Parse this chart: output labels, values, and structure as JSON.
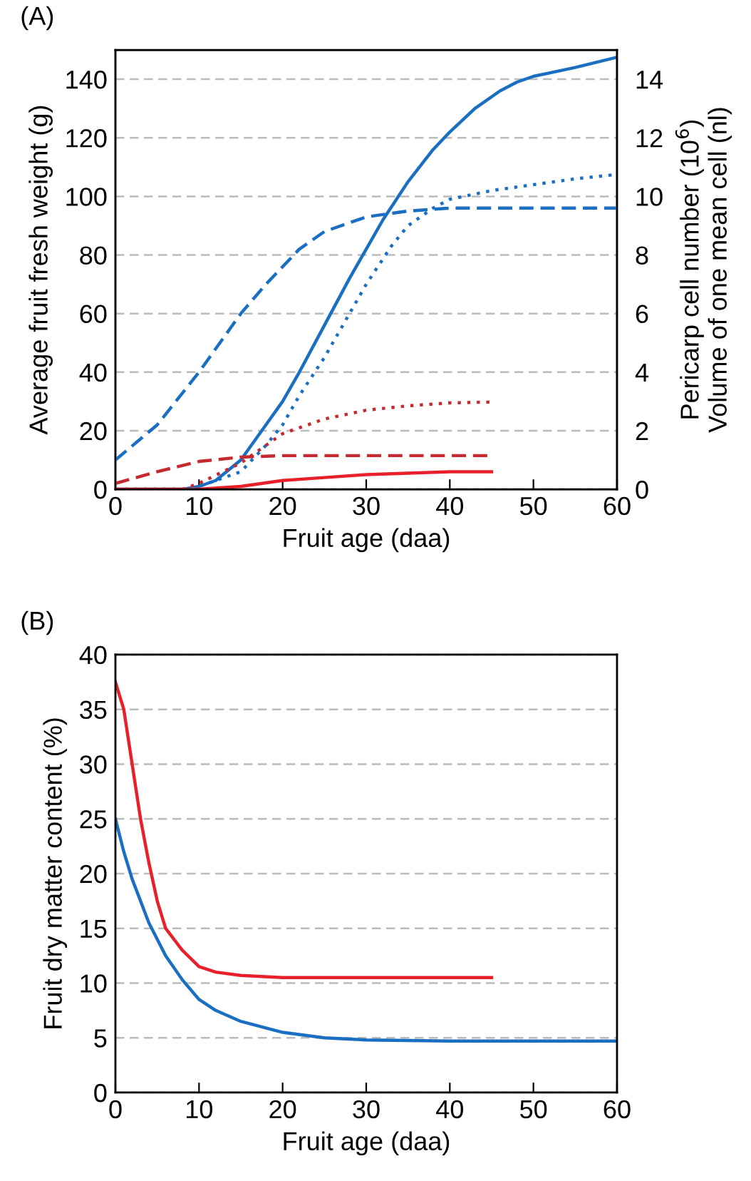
{
  "chart_data": [
    {
      "type": "line",
      "title": "(A)",
      "xlabel": "Fruit age (daa)",
      "ylabel": "Average fruit fresh weight (g)",
      "y2label": "Pericarp cell number (10$^{6}$)\nVolume of one mean cell (nl)",
      "xlim": [
        0,
        60
      ],
      "xticks": [
        0,
        10,
        20,
        30,
        40,
        50,
        60
      ],
      "ylim": [
        0,
        150
      ],
      "yticks": [
        0,
        20,
        40,
        60,
        80,
        100,
        120,
        140
      ],
      "y2lim": [
        0,
        15
      ],
      "y2ticks": [
        0,
        2,
        4,
        6,
        8,
        10,
        12,
        14
      ],
      "grid": "y",
      "series": [
        {
          "color": "#1b6fc2",
          "line_style": "solid",
          "x": [
            0,
            8,
            10,
            12,
            15,
            18,
            20,
            22,
            25,
            28,
            30,
            32,
            35,
            38,
            40,
            43,
            46,
            48,
            50,
            55,
            60
          ],
          "values": [
            0,
            0,
            1,
            3,
            10,
            22,
            30,
            40,
            56,
            72,
            82,
            92,
            105,
            116,
            122,
            130,
            136,
            139,
            141,
            144,
            147.5
          ]
        },
        {
          "color": "#e8202a",
          "line_style": "solid",
          "x": [
            0,
            10,
            15,
            20,
            25,
            30,
            35,
            40,
            45
          ],
          "values": [
            0,
            0,
            1,
            3,
            4,
            5,
            5.5,
            6,
            6
          ]
        },
        {
          "color": "#1b6fc2",
          "line_style": "dashed",
          "axis": "y2",
          "x": [
            0,
            5,
            10,
            15,
            18,
            20,
            22,
            25,
            30,
            35,
            40,
            50,
            60
          ],
          "values": [
            1.0,
            2.2,
            4.0,
            6.0,
            7.0,
            7.6,
            8.2,
            8.8,
            9.3,
            9.5,
            9.6,
            9.6,
            9.6
          ]
        },
        {
          "color": "#c62a2f",
          "line_style": "dashed",
          "axis": "y2",
          "x": [
            0,
            5,
            10,
            15,
            20,
            25,
            30,
            35,
            40,
            45
          ],
          "values": [
            0.2,
            0.6,
            0.95,
            1.1,
            1.15,
            1.15,
            1.15,
            1.15,
            1.15,
            1.15
          ]
        },
        {
          "color": "#1b6fc2",
          "line_style": "dotted",
          "axis": "y2",
          "x": [
            0,
            8,
            10,
            15,
            18,
            20,
            22,
            25,
            28,
            30,
            33,
            35,
            38,
            40,
            45,
            50,
            55,
            60
          ],
          "values": [
            0,
            0,
            0.1,
            0.6,
            1.5,
            2.2,
            3.2,
            4.5,
            6.0,
            7.0,
            8.3,
            9.0,
            9.6,
            9.9,
            10.2,
            10.4,
            10.6,
            10.75
          ]
        },
        {
          "color": "#c62a2f",
          "line_style": "dotted",
          "axis": "y2",
          "x": [
            0,
            8,
            10,
            15,
            18,
            20,
            25,
            30,
            35,
            40,
            45
          ],
          "values": [
            0,
            0,
            0.2,
            0.9,
            1.5,
            1.9,
            2.4,
            2.7,
            2.85,
            2.95,
            2.98
          ]
        }
      ]
    },
    {
      "type": "line",
      "title": "(B)",
      "xlabel": "Fruit age (daa)",
      "ylabel": "Fruit dry matter content (%)",
      "xlim": [
        0,
        60
      ],
      "xticks": [
        0,
        10,
        20,
        30,
        40,
        50,
        60
      ],
      "ylim": [
        0,
        40
      ],
      "yticks": [
        0,
        5,
        10,
        15,
        20,
        25,
        30,
        35,
        40
      ],
      "grid": "y",
      "series": [
        {
          "color": "#e8202a",
          "line_style": "solid",
          "x": [
            0,
            1,
            2,
            3,
            4,
            5,
            6,
            8,
            10,
            12,
            15,
            20,
            30,
            45
          ],
          "values": [
            37.5,
            35,
            30,
            25,
            21,
            17.5,
            15,
            13,
            11.5,
            11,
            10.7,
            10.5,
            10.5,
            10.5
          ]
        },
        {
          "color": "#1b6fc2",
          "line_style": "solid",
          "x": [
            0,
            1,
            2,
            3,
            4,
            5,
            6,
            8,
            10,
            12,
            15,
            20,
            25,
            30,
            40,
            60
          ],
          "values": [
            25,
            22,
            19.5,
            17.5,
            15.5,
            14,
            12.5,
            10.3,
            8.5,
            7.5,
            6.5,
            5.5,
            5.0,
            4.8,
            4.7,
            4.7
          ]
        }
      ]
    }
  ]
}
